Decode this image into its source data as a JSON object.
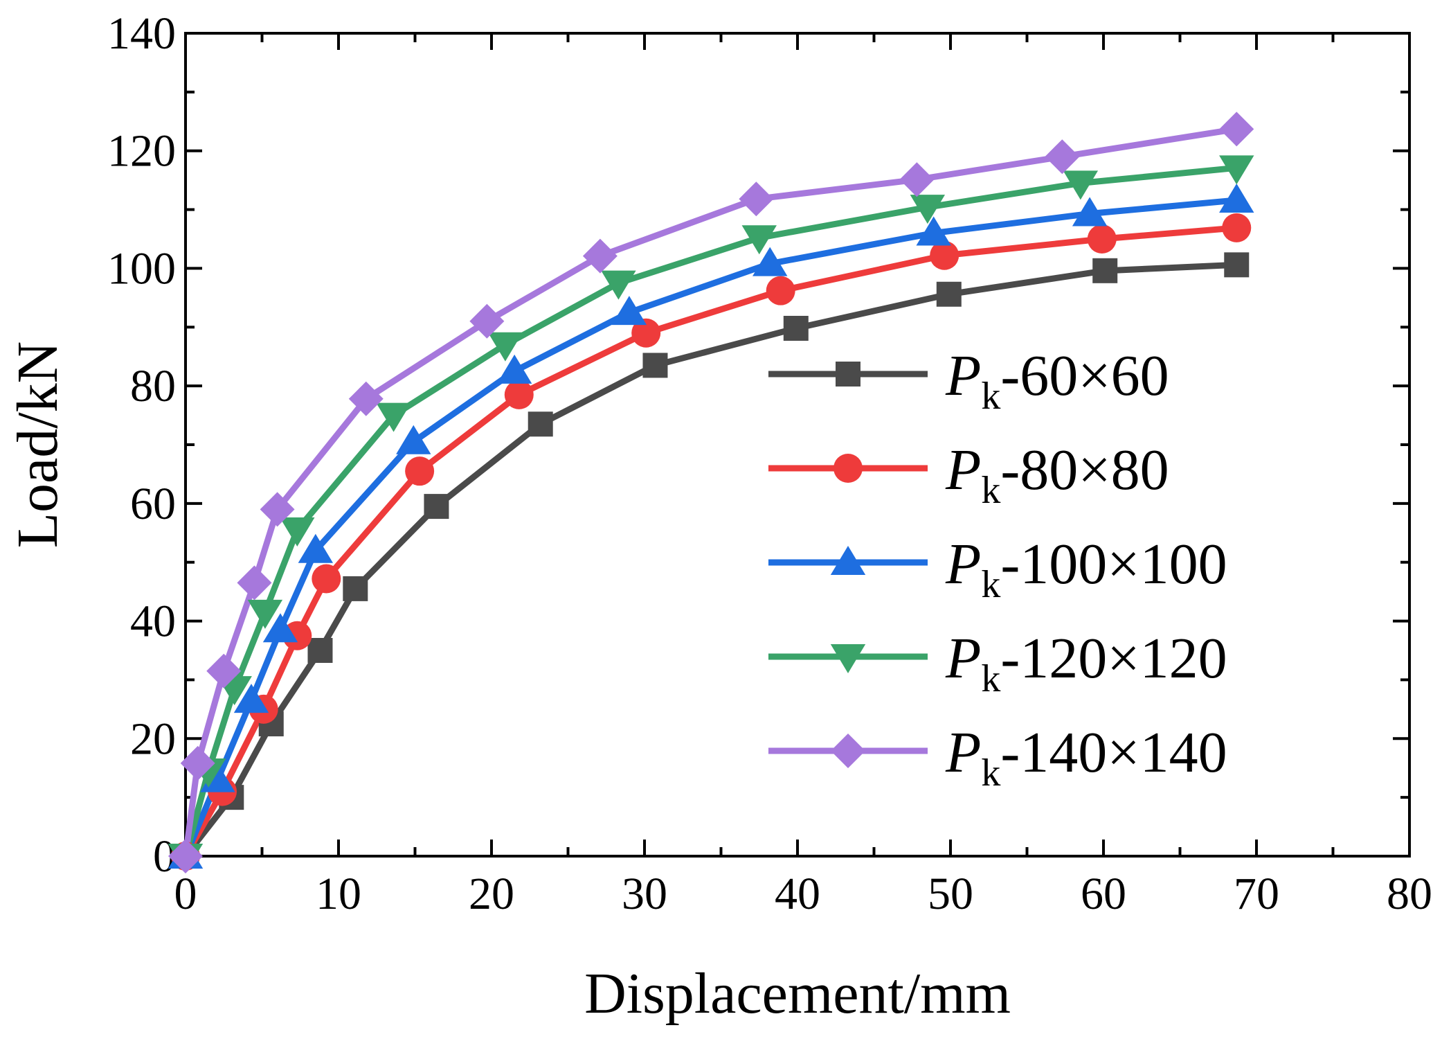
{
  "chart_data": {
    "type": "line",
    "xlabel": "Displacement/mm",
    "ylabel": "Load/kN",
    "xlim": [
      0,
      80
    ],
    "ylim": [
      0,
      140
    ],
    "xticks": [
      0,
      10,
      20,
      30,
      40,
      50,
      60,
      70,
      80
    ],
    "yticks": [
      0,
      20,
      40,
      60,
      80,
      100,
      120,
      140
    ],
    "xtick_labels": [
      "0",
      "10",
      "20",
      "30",
      "40",
      "50",
      "60",
      "70",
      "80"
    ],
    "ytick_labels": [
      "0",
      "20",
      "40",
      "60",
      "80",
      "100",
      "120",
      "140"
    ],
    "legend_position": "center-right",
    "series": [
      {
        "name": "Pk-60×60",
        "label_main": "P",
        "label_sub": "k",
        "label_rest": "-60×60",
        "color": "#4a4a4a",
        "marker": "square",
        "x": [
          0,
          3,
          5.6,
          8.8,
          11.1,
          16.4,
          23.2,
          30.7,
          39.9,
          49.9,
          60.1,
          68.7
        ],
        "y": [
          0,
          10,
          22.5,
          35,
          45.5,
          59.5,
          73.5,
          83.5,
          89.8,
          95.6,
          99.6,
          100.6
        ]
      },
      {
        "name": "Pk-80×80",
        "label_main": "P",
        "label_sub": "k",
        "label_rest": "-80×80",
        "color": "#ee3b3b",
        "marker": "circle",
        "x": [
          0,
          2.4,
          5.1,
          7.3,
          9.2,
          15.3,
          21.8,
          30.1,
          38.9,
          49.6,
          59.9,
          68.7
        ],
        "y": [
          0,
          11,
          25,
          37.5,
          47.2,
          65.5,
          78.5,
          89,
          96.2,
          102.2,
          105,
          106.9
        ]
      },
      {
        "name": "Pk-100×100",
        "label_main": "P",
        "label_sub": "k",
        "label_rest": "-100×100",
        "color": "#1e6ee0",
        "marker": "triangle-up",
        "x": [
          0,
          2.1,
          4.3,
          6.2,
          8.5,
          14.9,
          21.5,
          29,
          38.2,
          48.9,
          59.1,
          68.7
        ],
        "y": [
          0,
          13,
          26.5,
          38.5,
          52,
          70.5,
          82.5,
          92.5,
          100.8,
          106,
          109.3,
          111.6
        ]
      },
      {
        "name": "Pk-120×120",
        "label_main": "P",
        "label_sub": "k",
        "label_rest": "-120×120",
        "color": "#3aa369",
        "marker": "triangle-down",
        "x": [
          0,
          1.5,
          3.2,
          5.2,
          7.3,
          13.6,
          20.9,
          28.3,
          37.5,
          48.5,
          58.5,
          68.7
        ],
        "y": [
          0,
          14.5,
          28.5,
          41.5,
          55.5,
          75,
          87,
          97.5,
          105.2,
          110.4,
          114.5,
          117.1
        ]
      },
      {
        "name": "Pk-140×140",
        "label_main": "P",
        "label_sub": "k",
        "label_rest": "-140×140",
        "color": "#a678dc",
        "marker": "diamond",
        "x": [
          0,
          0.8,
          2.5,
          4.5,
          6,
          11.8,
          19.7,
          27.1,
          37.3,
          47.8,
          57.3,
          68.7
        ],
        "y": [
          0,
          15.8,
          31.5,
          46.5,
          59,
          77.8,
          91,
          102.1,
          111.8,
          115.1,
          119,
          123.7
        ]
      }
    ]
  }
}
